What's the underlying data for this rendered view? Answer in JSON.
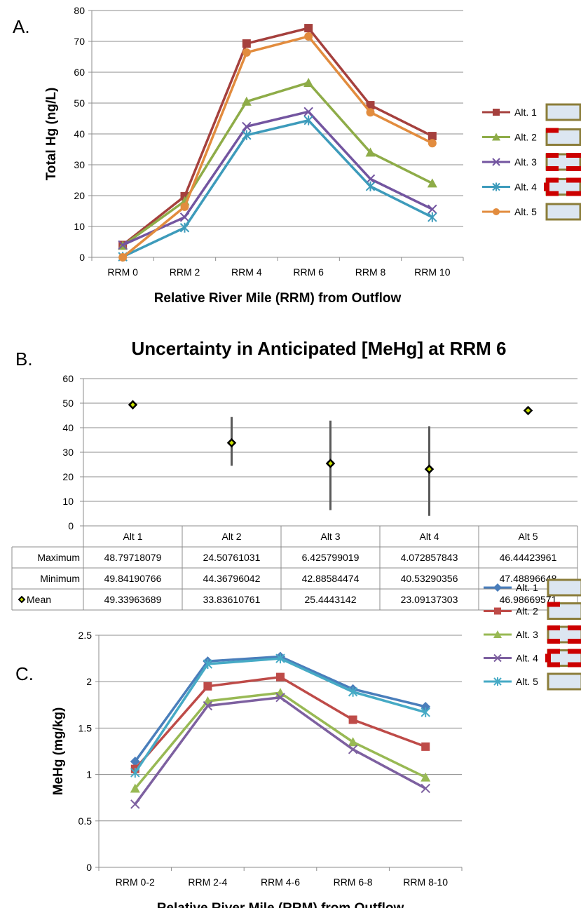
{
  "chart_data": [
    {
      "panel": "A.",
      "type": "line",
      "title": "",
      "xlabel": "Relative River Mile (RRM) from Outflow",
      "ylabel": "Total Hg (ng/L)",
      "categories": [
        "RRM 0",
        "RRM 2",
        "RRM 4",
        "RRM 6",
        "RRM 8",
        "RRM 10"
      ],
      "ylim": [
        0,
        80
      ],
      "yticks": [
        0,
        10,
        20,
        30,
        40,
        50,
        60,
        70,
        80
      ],
      "grid": true,
      "legend_position": "right",
      "series": [
        {
          "name": "Alt. 1",
          "color": "#A5403D",
          "marker": "square",
          "values": [
            4,
            19.8,
            69.3,
            74.3,
            49.3,
            39.3
          ]
        },
        {
          "name": "Alt. 2",
          "color": "#8EAC48",
          "marker": "triangle",
          "values": [
            3.8,
            18.2,
            50.5,
            56.6,
            34.0,
            24.0
          ]
        },
        {
          "name": "Alt. 3",
          "color": "#7355A0",
          "marker": "x",
          "values": [
            4.0,
            13.0,
            42.4,
            47.2,
            25.4,
            15.6
          ]
        },
        {
          "name": "Alt. 4",
          "color": "#3D9BBB",
          "marker": "star",
          "values": [
            0.2,
            9.6,
            39.6,
            44.4,
            23.0,
            13.0
          ]
        },
        {
          "name": "Alt. 5",
          "color": "#E28C3E",
          "marker": "circle",
          "values": [
            0,
            16.4,
            66.4,
            71.6,
            47.0,
            37.0
          ]
        }
      ]
    },
    {
      "panel": "B.",
      "type": "scatter",
      "title": "Uncertainty in Anticipated [MeHg] at RRM 6",
      "xlabel": "",
      "ylabel": "",
      "categories": [
        "Alt 1",
        "Alt 2",
        "Alt 3",
        "Alt 4",
        "Alt 5"
      ],
      "ylim": [
        0,
        60
      ],
      "yticks": [
        0,
        10,
        20,
        30,
        40,
        50,
        60
      ],
      "grid": true,
      "table": {
        "rows": [
          {
            "label": "Maximum",
            "values": [
              "48.79718079",
              "24.50761031",
              "6.425799019",
              "4.072857843",
              "46.44423961"
            ]
          },
          {
            "label": "Minimum",
            "values": [
              "49.84190766",
              "44.36796042",
              "42.88584474",
              "40.53290356",
              "47.48896648"
            ]
          },
          {
            "label": "Mean",
            "values": [
              "49.33963689",
              "33.83610761",
              "25.4443142",
              "23.09137303",
              "46.98669571"
            ]
          }
        ]
      },
      "maximum": [
        48.79718079,
        24.50761031,
        6.425799019,
        4.072857843,
        46.44423961
      ],
      "minimum": [
        49.84190766,
        44.36796042,
        42.88584474,
        40.53290356,
        47.48896648
      ],
      "mean": [
        49.33963689,
        33.83610761,
        25.4443142,
        23.09137303,
        46.98669571
      ],
      "bar_color": "#595959",
      "marker_color": "#000000",
      "marker_fill": "#C8E000"
    },
    {
      "panel": "C.",
      "type": "line",
      "title": "",
      "xlabel": "Relative River Mile (RRM) from Outflow",
      "ylabel": "MeHg (mg/kg)",
      "categories": [
        "RRM 0-2",
        "RRM 2-4",
        "RRM 4-6",
        "RRM 6-8",
        "RRM 8-10"
      ],
      "ylim": [
        0,
        2.5
      ],
      "yticks": [
        0,
        0.5,
        1,
        1.5,
        2,
        2.5
      ],
      "grid": true,
      "legend_position": "right",
      "series": [
        {
          "name": "Alt. 1",
          "color": "#4A7EBB",
          "marker": "diamond",
          "values": [
            1.14,
            2.22,
            2.27,
            1.92,
            1.73
          ]
        },
        {
          "name": "Alt. 2",
          "color": "#BE4B48",
          "marker": "square",
          "values": [
            1.06,
            1.95,
            2.05,
            1.59,
            1.3
          ]
        },
        {
          "name": "Alt. 3",
          "color": "#98B954",
          "marker": "triangle",
          "values": [
            0.85,
            1.79,
            1.88,
            1.35,
            0.97
          ]
        },
        {
          "name": "Alt. 4",
          "color": "#7D60A0",
          "marker": "x",
          "values": [
            0.68,
            1.74,
            1.83,
            1.27,
            0.85
          ]
        },
        {
          "name": "Alt. 5",
          "color": "#46AAC5",
          "marker": "star",
          "values": [
            1.02,
            2.19,
            2.25,
            1.89,
            1.67
          ]
        }
      ]
    }
  ]
}
